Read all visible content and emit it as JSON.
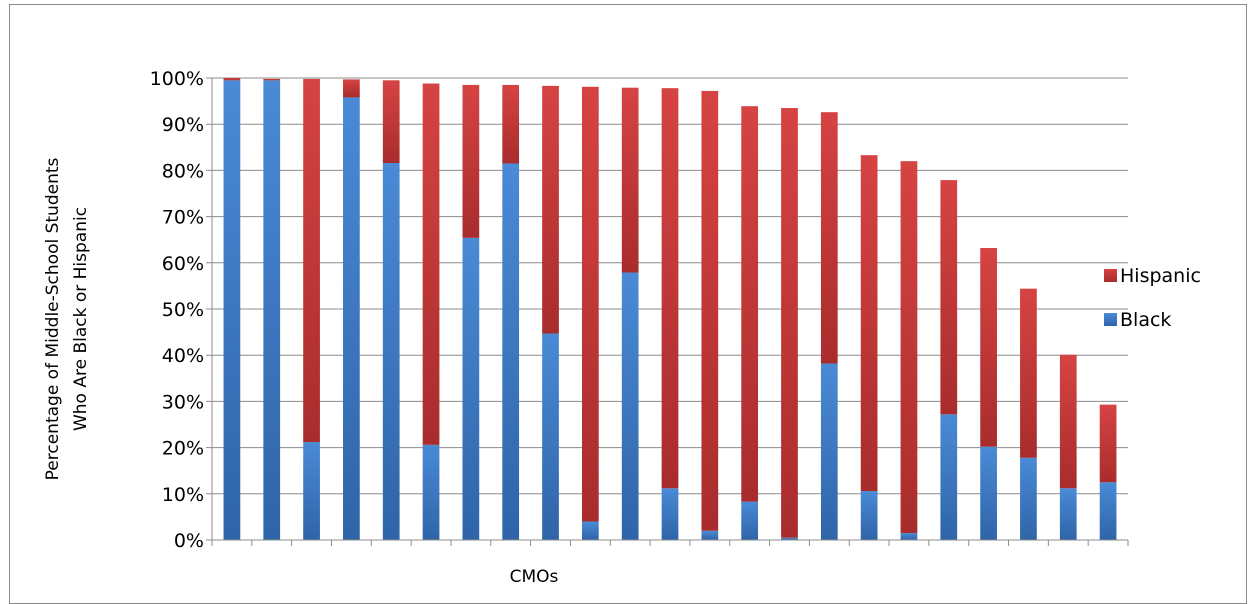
{
  "chart_data": {
    "type": "bar",
    "stacked": true,
    "xlabel": "CMOs",
    "ylabel_lines": [
      "Percentage of Middle-School Students",
      "Who Are Black or Hispanic"
    ],
    "ylim": [
      0,
      100
    ],
    "yticks": [
      0,
      10,
      20,
      30,
      40,
      50,
      60,
      70,
      80,
      90,
      100
    ],
    "ytick_format": "%",
    "grid": true,
    "legend_position": "right",
    "categories_count": 23,
    "series": [
      {
        "name": "Black",
        "color": "#3d7cc9",
        "values": [
          99.5,
          99.5,
          21.2,
          95.8,
          81.6,
          20.6,
          65.4,
          81.5,
          44.7,
          4.0,
          57.9,
          11.2,
          2.0,
          8.3,
          0.5,
          38.2,
          10.6,
          1.5,
          27.2,
          20.2,
          17.8,
          11.2,
          12.5
        ]
      },
      {
        "name": "Hispanic",
        "color": "#c83a3a",
        "values": [
          0.5,
          0.3,
          78.6,
          3.9,
          17.9,
          78.2,
          33.1,
          17.0,
          53.6,
          94.1,
          40.0,
          86.6,
          95.2,
          85.6,
          93.0,
          54.4,
          72.7,
          80.5,
          50.7,
          43.0,
          36.6,
          28.9,
          16.8
        ]
      }
    ]
  }
}
